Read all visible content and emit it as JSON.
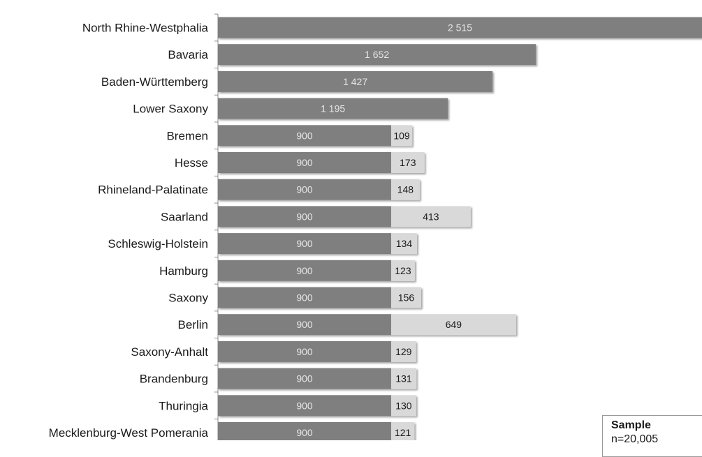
{
  "chart_data": {
    "type": "bar",
    "orientation": "horizontal",
    "stacked": true,
    "categories": [
      "North Rhine-Westphalia",
      "Bavaria",
      "Baden-Württemberg",
      "Lower Saxony",
      "Bremen",
      "Hesse",
      "Rhineland-Palatinate",
      "Saarland",
      "Schleswig-Holstein",
      "Hamburg",
      "Saxony",
      "Berlin",
      "Saxony-Anhalt",
      "Brandenburg",
      "Thuringia",
      "Mecklenburg-West Pomerania"
    ],
    "series": [
      {
        "values": [
          2515,
          1652,
          1427,
          1195,
          900,
          900,
          900,
          900,
          900,
          900,
          900,
          900,
          900,
          900,
          900,
          900
        ],
        "labels": [
          "2 515",
          "1 652",
          "1 427",
          "1 195",
          "900",
          "900",
          "900",
          "900",
          "900",
          "900",
          "900",
          "900",
          "900",
          "900",
          "900",
          "900"
        ],
        "color": "#7f7f7f"
      },
      {
        "values": [
          0,
          0,
          0,
          0,
          109,
          173,
          148,
          413,
          134,
          123,
          156,
          649,
          129,
          131,
          130,
          121
        ],
        "labels": [
          "",
          "",
          "",
          "",
          "109",
          "173",
          "148",
          "413",
          "134",
          "123",
          "156",
          "649",
          "129",
          "131",
          "130",
          "121"
        ],
        "color": "#d9d9d9"
      }
    ],
    "xlim": [
      0,
      2515
    ],
    "grid": false,
    "title": "",
    "xlabel": "",
    "ylabel": ""
  },
  "sample": {
    "title": "Sample",
    "n": "n=20,005"
  }
}
